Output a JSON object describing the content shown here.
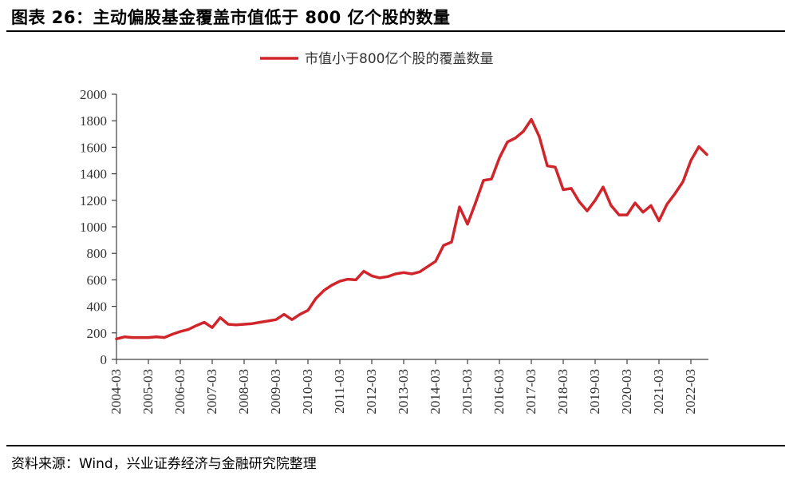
{
  "header": {
    "title": "图表 26：主动偏股基金覆盖市值低于 800 亿个股的数量"
  },
  "footer": {
    "source": "资料来源：Wind，兴业证券经济与金融研究院整理"
  },
  "colors": {
    "series": "#d0252a",
    "axis": "#404040"
  },
  "chart_data": {
    "type": "line",
    "title": "",
    "xlabel": "",
    "ylabel": "",
    "ylim": [
      0,
      2000
    ],
    "yticks": [
      0,
      200,
      400,
      600,
      800,
      1000,
      1200,
      1400,
      1600,
      1800,
      2000
    ],
    "xtick_labels": [
      "2004-03",
      "2005-03",
      "2006-03",
      "2007-03",
      "2008-03",
      "2009-03",
      "2010-03",
      "2011-03",
      "2012-03",
      "2013-03",
      "2014-03",
      "2015-03",
      "2016-03",
      "2017-03",
      "2018-03",
      "2019-03",
      "2020-03",
      "2021-03",
      "2022-03"
    ],
    "grid": false,
    "legend": "top-center",
    "x_start": "2004-03",
    "x_step": "quarter",
    "series": [
      {
        "name": "市值小于800亿个股的覆盖数量",
        "values": [
          155,
          170,
          165,
          165,
          165,
          170,
          165,
          190,
          210,
          225,
          255,
          280,
          240,
          315,
          265,
          260,
          265,
          270,
          280,
          290,
          300,
          340,
          300,
          340,
          370,
          460,
          520,
          560,
          590,
          605,
          600,
          665,
          630,
          615,
          625,
          645,
          655,
          645,
          660,
          700,
          740,
          860,
          885,
          1150,
          1020,
          1180,
          1350,
          1360,
          1520,
          1640,
          1670,
          1720,
          1810,
          1680,
          1460,
          1450,
          1280,
          1290,
          1190,
          1120,
          1200,
          1300,
          1160,
          1090,
          1090,
          1180,
          1110,
          1160,
          1045,
          1170,
          1250,
          1340,
          1500,
          1605,
          1545
        ]
      }
    ]
  }
}
